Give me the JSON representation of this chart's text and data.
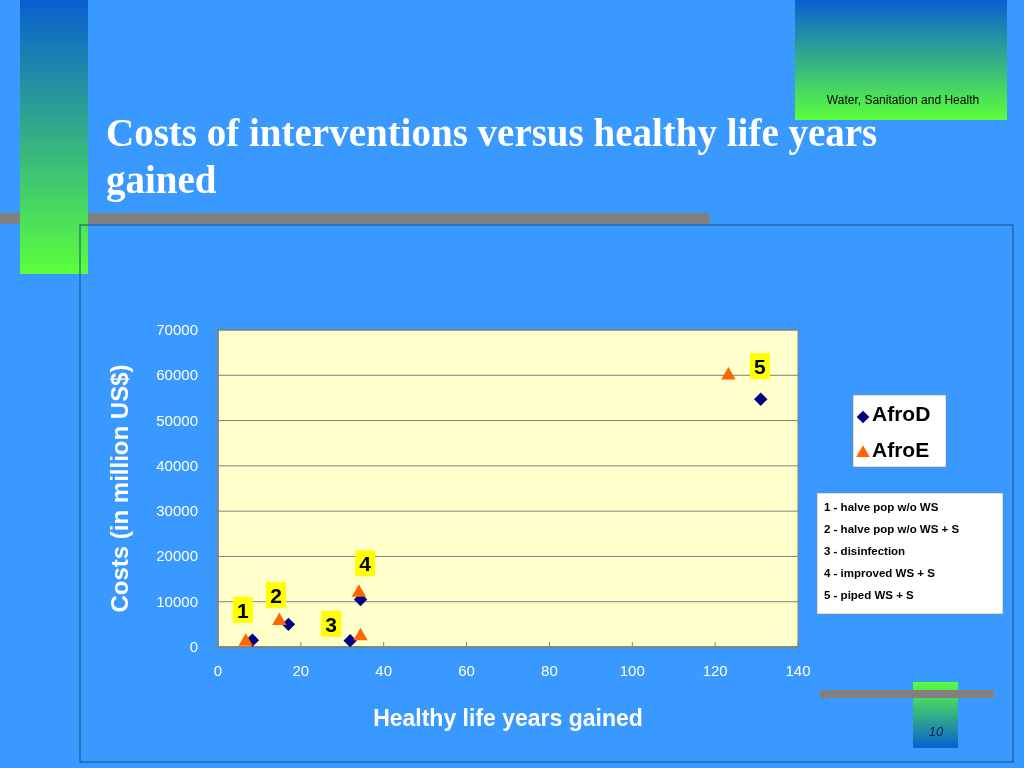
{
  "chart_data": {
    "type": "scatter",
    "title": "Costs of interventions versus healthy life years gained",
    "xlabel": "Healthy life years gained",
    "ylabel": "Costs (in million US$)",
    "series": [
      {
        "name": "AfroD",
        "color": "#000080",
        "marker": "diamond",
        "x": [
          8.3,
          17,
          31.9,
          34.4,
          131
        ],
        "values": [
          1500,
          5000,
          1400,
          10500,
          54700
        ]
      },
      {
        "name": "AfroE",
        "color": "#ff6600",
        "marker": "triangle",
        "x": [
          6.7,
          14.8,
          34.4,
          34,
          123.2
        ],
        "values": [
          1200,
          5800,
          2400,
          12000,
          60000
        ]
      }
    ],
    "xlim": [
      0,
      140
    ],
    "xticks": [
      0,
      20,
      40,
      60,
      80,
      100,
      120,
      140
    ],
    "ylim": [
      0,
      70000
    ],
    "yticks": [
      0,
      10000,
      20000,
      30000,
      40000,
      50000,
      60000,
      70000
    ],
    "grid": "y",
    "legend": "right",
    "annotations": [
      "Water, Sanitation and Health",
      {
        "text": "1",
        "x": 6,
        "y": 8200
      },
      {
        "text": "2",
        "x": 14,
        "y": 11500
      },
      {
        "text": "3",
        "x": 27.3,
        "y": 5100
      },
      {
        "text": "4",
        "x": 35.5,
        "y": 18500
      },
      {
        "text": "5",
        "x": 130.8,
        "y": 62000
      },
      "1 - halve pop w/o WS",
      "2 - halve pop w/o WS + S",
      "3 - disinfection",
      "4 - improved WS + S",
      "5 - piped WS + S",
      "10"
    ]
  }
}
